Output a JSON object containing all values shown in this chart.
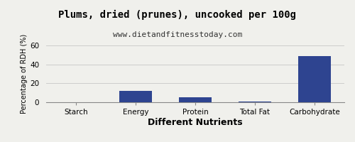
{
  "title": "Plums, dried (prunes), uncooked per 100g",
  "subtitle": "www.dietandfitnesstoday.com",
  "xlabel": "Different Nutrients",
  "ylabel": "Percentage of RDH (%)",
  "categories": [
    "Starch",
    "Energy",
    "Protein",
    "Total Fat",
    "Carbohydrate"
  ],
  "values": [
    0.0,
    12.0,
    5.0,
    1.0,
    49.0
  ],
  "bar_color": "#2e4490",
  "ylim": [
    0,
    60
  ],
  "yticks": [
    0,
    20,
    40,
    60
  ],
  "background_color": "#f0f0ec",
  "title_fontsize": 10,
  "subtitle_fontsize": 8,
  "xlabel_fontsize": 9,
  "ylabel_fontsize": 7,
  "tick_fontsize": 7.5,
  "bar_width": 0.55
}
